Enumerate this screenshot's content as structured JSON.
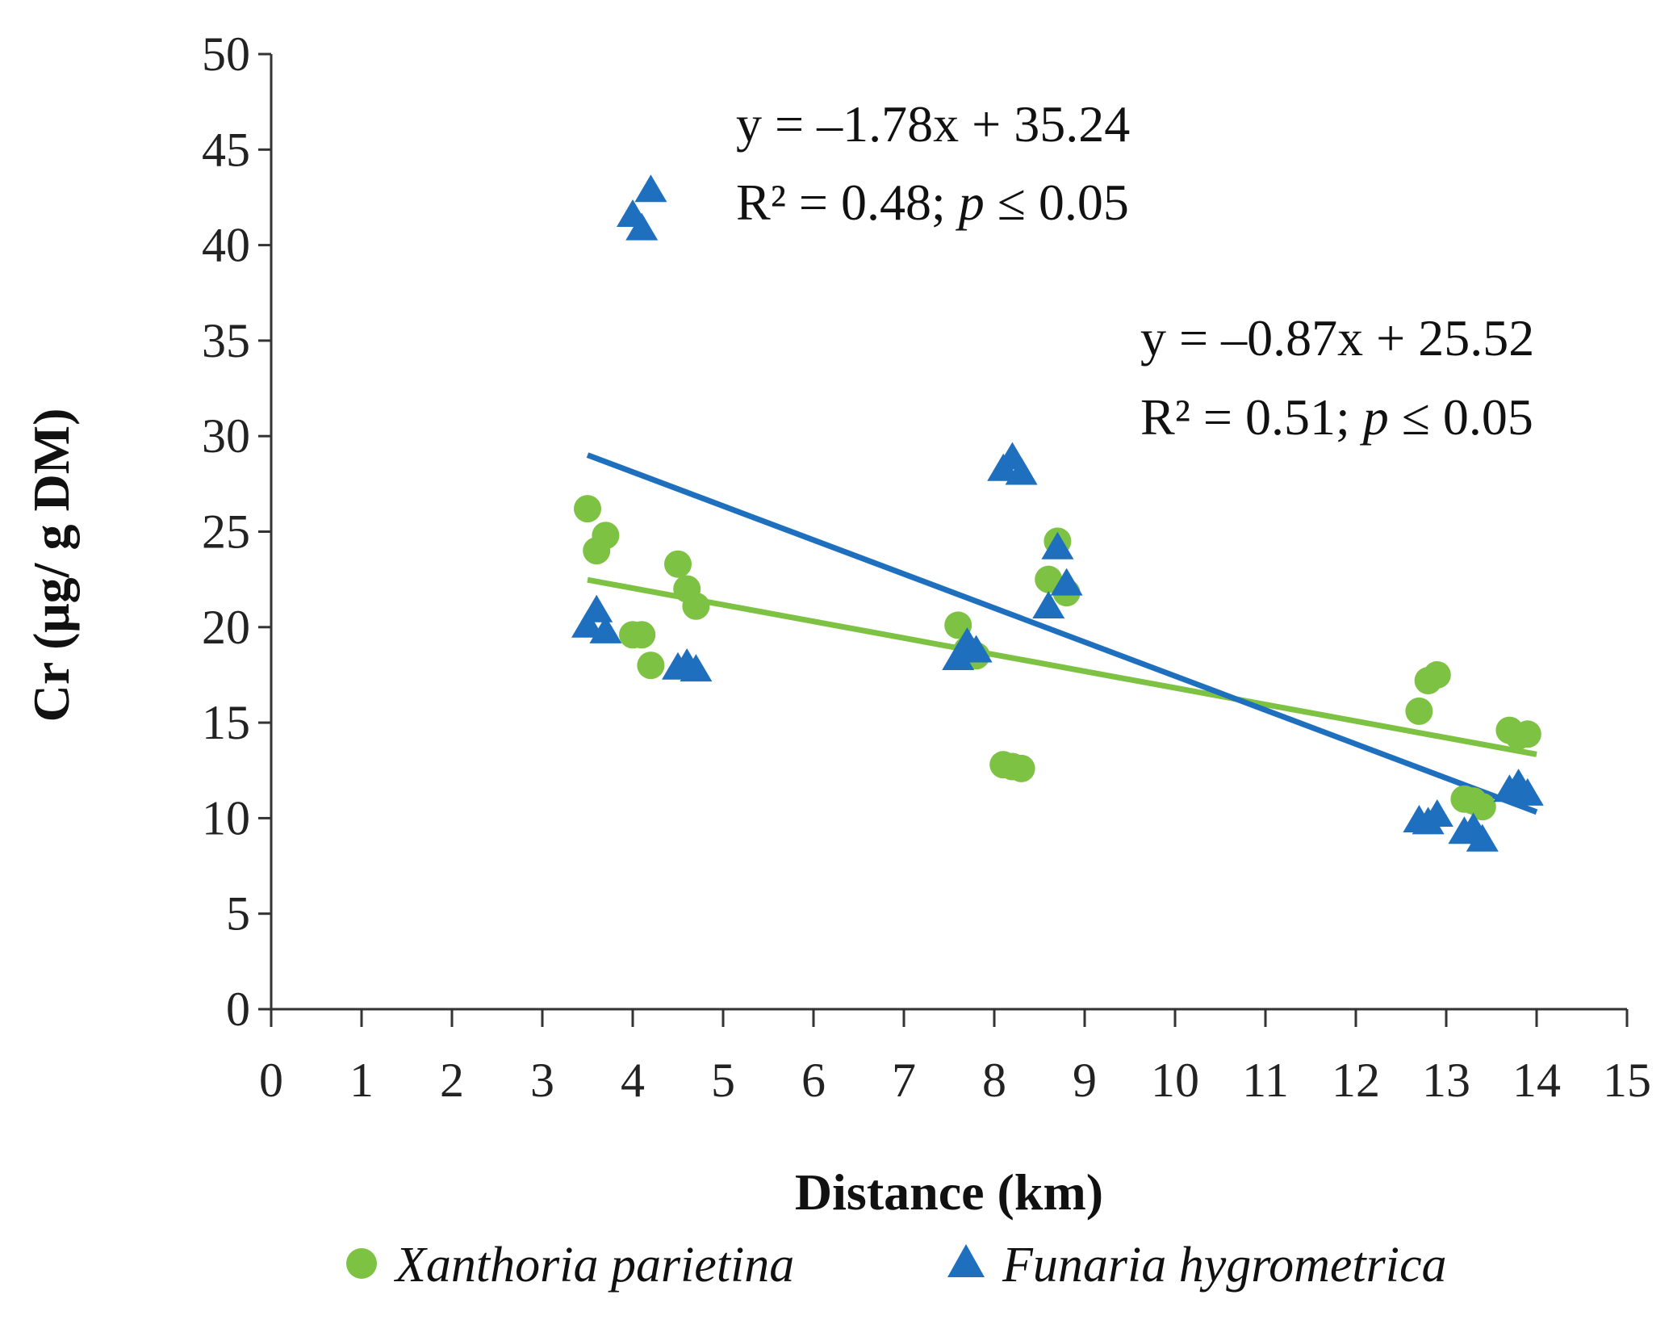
{
  "chart_data": {
    "type": "scatter",
    "title": "",
    "xlabel": "Distance (km)",
    "ylabel": "Cr (μg/ g DM)",
    "xlim": [
      0,
      15
    ],
    "ylim": [
      0,
      50
    ],
    "xticks": [
      "0",
      "1",
      "2",
      "3",
      "4",
      "5",
      "6",
      "7",
      "8",
      "9",
      "10",
      "11",
      "12",
      "13",
      "14",
      "15"
    ],
    "yticks": [
      "0",
      "5",
      "10",
      "15",
      "20",
      "25",
      "30",
      "35",
      "40",
      "45",
      "50"
    ],
    "grid": false,
    "legend_position": "bottom",
    "series": [
      {
        "name": "Xanthoria parietina",
        "marker": "circle",
        "color": "#7dc242",
        "points": [
          [
            3.5,
            26.2
          ],
          [
            3.6,
            24.0
          ],
          [
            3.7,
            24.8
          ],
          [
            4.0,
            19.6
          ],
          [
            4.1,
            19.6
          ],
          [
            4.2,
            18.0
          ],
          [
            4.5,
            23.3
          ],
          [
            4.6,
            22.0
          ],
          [
            4.7,
            21.1
          ],
          [
            7.6,
            20.1
          ],
          [
            7.7,
            18.8
          ],
          [
            7.8,
            18.5
          ],
          [
            8.1,
            12.8
          ],
          [
            8.2,
            12.7
          ],
          [
            8.3,
            12.6
          ],
          [
            8.6,
            22.5
          ],
          [
            8.7,
            24.5
          ],
          [
            8.8,
            21.8
          ],
          [
            12.7,
            15.6
          ],
          [
            12.8,
            17.2
          ],
          [
            12.9,
            17.5
          ],
          [
            13.2,
            11.0
          ],
          [
            13.3,
            10.9
          ],
          [
            13.4,
            10.6
          ],
          [
            13.7,
            14.6
          ],
          [
            13.8,
            14.3
          ],
          [
            13.9,
            14.4
          ]
        ],
        "trendline": {
          "slope": -0.87,
          "intercept": 25.52,
          "x_range": [
            3.5,
            14.0
          ]
        },
        "equation": "y = –0.87x + 25.52",
        "r2_label": "R² = 0.51; ",
        "p_symbol": "p",
        "p_label": " ≤ 0.05"
      },
      {
        "name": "Funaria hygrometrica",
        "marker": "triangle",
        "color": "#1f6fbf",
        "points": [
          [
            3.5,
            20.0
          ],
          [
            3.6,
            20.8
          ],
          [
            3.7,
            19.7
          ],
          [
            4.0,
            41.5
          ],
          [
            4.1,
            40.8
          ],
          [
            4.2,
            42.8
          ],
          [
            4.5,
            17.8
          ],
          [
            4.6,
            18.0
          ],
          [
            4.7,
            17.7
          ],
          [
            7.6,
            18.3
          ],
          [
            7.7,
            19.1
          ],
          [
            7.8,
            18.7
          ],
          [
            8.1,
            28.2
          ],
          [
            8.2,
            28.8
          ],
          [
            8.3,
            28.0
          ],
          [
            8.6,
            21.0
          ],
          [
            8.7,
            24.1
          ],
          [
            8.8,
            22.2
          ],
          [
            12.7,
            9.8
          ],
          [
            12.8,
            9.7
          ],
          [
            12.9,
            10.1
          ],
          [
            13.2,
            9.2
          ],
          [
            13.3,
            9.4
          ],
          [
            13.4,
            8.8
          ],
          [
            13.7,
            11.4
          ],
          [
            13.8,
            11.7
          ],
          [
            13.9,
            11.2
          ]
        ],
        "trendline": {
          "slope": -1.78,
          "intercept": 35.24,
          "x_range": [
            3.5,
            14.0
          ]
        },
        "equation": "y = –1.78x + 35.24",
        "r2_label": "R² = 0.48; ",
        "p_symbol": "p",
        "p_label": " ≤ 0.05"
      }
    ]
  }
}
